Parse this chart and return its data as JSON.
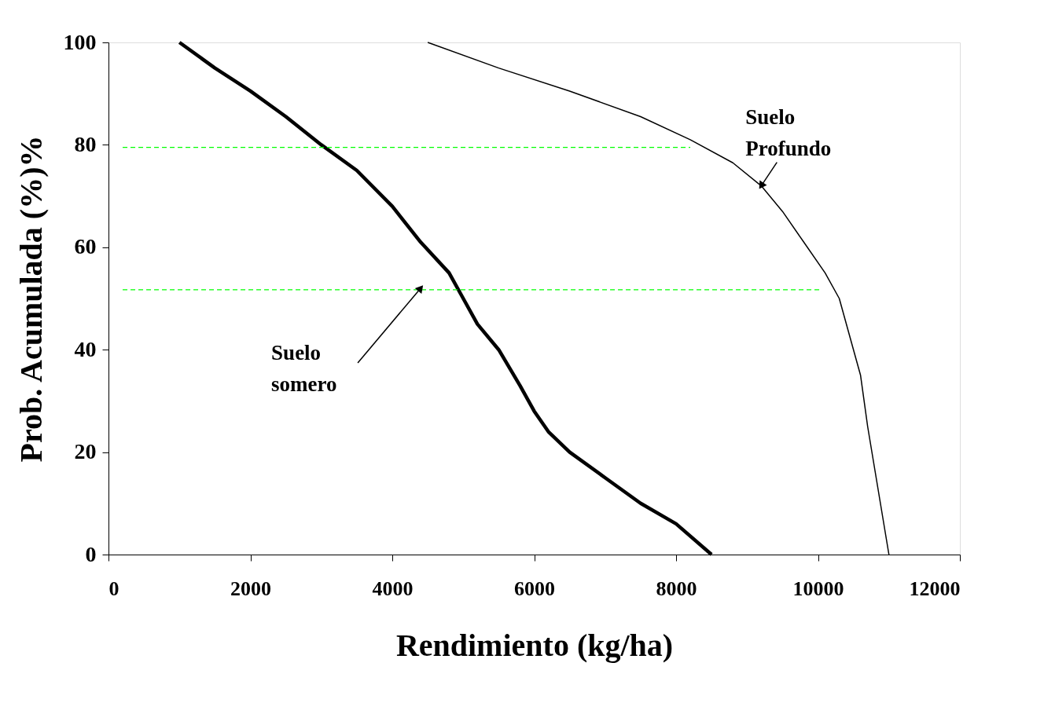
{
  "chart_data": {
    "type": "line",
    "xlabel": "Rendimiento (kg/ha)",
    "ylabel": "Prob. Acumulada (%)%",
    "xlim": [
      0,
      12000
    ],
    "ylim": [
      0,
      100
    ],
    "xticks": [
      0,
      2000,
      4000,
      6000,
      8000,
      10000,
      12000
    ],
    "yticks": [
      0,
      20,
      40,
      60,
      80,
      100
    ],
    "grid": false,
    "marker": "none",
    "series": [
      {
        "color": "#000000",
        "line_style": "solid",
        "x": [
          1000,
          1500,
          2000,
          2500,
          3000,
          3500,
          4000,
          4400,
          4800,
          5000,
          5200,
          5500,
          5800,
          6000,
          6200,
          6500,
          7000,
          7200,
          7500,
          8000,
          8500
        ],
        "values": [
          100,
          95,
          90.5,
          85.5,
          80,
          75,
          68,
          61,
          55,
          50,
          45,
          40,
          33,
          28,
          24,
          20,
          15,
          13,
          10,
          6,
          0
        ]
      },
      {
        "color": "#000000",
        "line_style": "solid",
        "x": [
          4500,
          5500,
          6500,
          7500,
          8200,
          8800,
          9200,
          9500,
          9800,
          10100,
          10300,
          10500,
          10600,
          10700,
          11000
        ],
        "values": [
          100,
          95,
          90.5,
          85.5,
          81,
          76.5,
          72,
          67,
          61,
          55,
          50,
          40,
          35,
          25,
          0
        ]
      },
      {
        "color": "#00ff00",
        "line_style": "dashed",
        "x": [
          200,
          8200
        ],
        "values": [
          79.5,
          79.5
        ]
      },
      {
        "color": "#00ff00",
        "line_style": "dashed",
        "x": [
          200,
          10050
        ],
        "values": [
          51.7,
          51.7
        ]
      }
    ],
    "annotations": [
      {
        "text": "Suelo\nsomero",
        "x": 4400,
        "y": 52
      },
      {
        "text": "Suelo\nProfundo",
        "x": 9200,
        "y": 72
      }
    ]
  }
}
